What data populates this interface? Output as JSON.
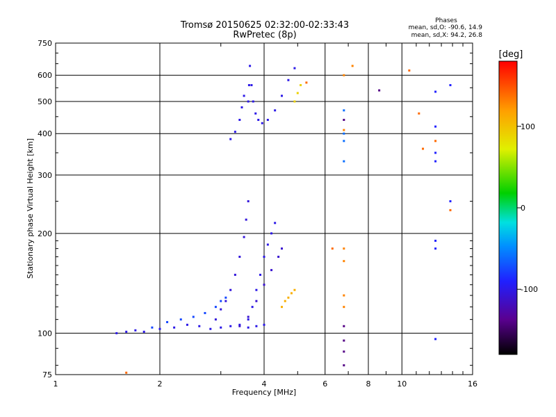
{
  "chart_data": {
    "type": "scatter",
    "title": "Tromsø 20150625 02:32:00-02:33:43",
    "subtitle": "RwPretec (8p)",
    "xlabel": "Frequency [MHz]",
    "ylabel": "Stationary phase Virtual Height [km]",
    "x_scale": "log",
    "y_scale": "log",
    "xlim": [
      1,
      16
    ],
    "ylim": [
      75,
      750
    ],
    "x_ticks": [
      1,
      2,
      4,
      6,
      8,
      10,
      16
    ],
    "x_tick_labels": [
      "1",
      "2",
      "4",
      "6",
      "8",
      "10",
      "16"
    ],
    "x_minor_ticks": [
      3,
      5,
      7,
      9,
      11,
      12,
      13,
      14,
      15
    ],
    "y_ticks": [
      75,
      100,
      200,
      300,
      400,
      500,
      600,
      750
    ],
    "y_tick_labels": [
      "75",
      "100",
      "200",
      "300",
      "400",
      "500",
      "600",
      "750"
    ],
    "grid": true,
    "stats": {
      "heading": "Phases",
      "line1": "mean, sd,O: -90.6, 14.9",
      "line2": "mean, sd,X:  94.2, 26.8"
    },
    "colorbar": {
      "label": "[deg]",
      "range": [
        -180,
        180
      ],
      "ticks": [
        100,
        0,
        -100
      ],
      "tick_labels": [
        "100",
        "0",
        "-100"
      ]
    },
    "traces": [
      {
        "name": "",
        "phase": -100,
        "points": [
          [
            1.5,
            100
          ],
          [
            1.6,
            101
          ],
          [
            1.7,
            102
          ],
          [
            1.8,
            101
          ],
          [
            2.0,
            103
          ],
          [
            2.2,
            104
          ],
          [
            2.4,
            106
          ],
          [
            2.6,
            105
          ],
          [
            2.8,
            103
          ],
          [
            3.0,
            104
          ],
          [
            3.2,
            105
          ],
          [
            3.4,
            106
          ],
          [
            3.6,
            104
          ],
          [
            3.8,
            105
          ],
          [
            4.0,
            106
          ]
        ]
      },
      {
        "name": "",
        "phase": -75,
        "points": [
          [
            1.9,
            104
          ],
          [
            2.1,
            108
          ],
          [
            2.3,
            110
          ],
          [
            2.5,
            112
          ],
          [
            2.7,
            115
          ],
          [
            2.9,
            120
          ],
          [
            3.0,
            125
          ],
          [
            3.1,
            128
          ]
        ]
      },
      {
        "name": "",
        "phase": -105,
        "points": [
          [
            2.9,
            110
          ],
          [
            3.0,
            118
          ],
          [
            3.1,
            125
          ],
          [
            3.2,
            135
          ],
          [
            3.3,
            150
          ],
          [
            3.4,
            170
          ],
          [
            3.5,
            195
          ],
          [
            3.55,
            220
          ],
          [
            3.6,
            250
          ]
        ]
      },
      {
        "name": "",
        "phase": -100,
        "points": [
          [
            3.6,
            110
          ],
          [
            3.7,
            120
          ],
          [
            3.8,
            135
          ],
          [
            3.9,
            150
          ],
          [
            4.0,
            170
          ],
          [
            4.1,
            185
          ],
          [
            4.2,
            200
          ],
          [
            4.3,
            215
          ]
        ]
      },
      {
        "name": "",
        "phase": -110,
        "points": [
          [
            3.4,
            105
          ],
          [
            3.6,
            112
          ],
          [
            3.8,
            125
          ],
          [
            4.0,
            140
          ],
          [
            4.2,
            155
          ],
          [
            4.4,
            170
          ],
          [
            4.5,
            180
          ]
        ]
      },
      {
        "name": "",
        "phase": 110,
        "points": [
          [
            4.5,
            120
          ],
          [
            4.6,
            125
          ],
          [
            4.7,
            128
          ],
          [
            4.8,
            132
          ],
          [
            4.9,
            135
          ]
        ]
      },
      {
        "name": "",
        "phase": -100,
        "points": [
          [
            3.2,
            385
          ],
          [
            3.3,
            405
          ],
          [
            3.4,
            440
          ],
          [
            3.45,
            480
          ],
          [
            3.5,
            520
          ]
        ]
      },
      {
        "name": "",
        "phase": -100,
        "points": [
          [
            3.6,
            500
          ],
          [
            3.62,
            560
          ],
          [
            3.64,
            640
          ],
          [
            3.68,
            560
          ],
          [
            3.72,
            500
          ],
          [
            3.78,
            460
          ],
          [
            3.85,
            440
          ],
          [
            3.95,
            430
          ],
          [
            4.1,
            440
          ],
          [
            4.3,
            470
          ],
          [
            4.5,
            520
          ],
          [
            4.7,
            580
          ],
          [
            4.9,
            630
          ]
        ]
      },
      {
        "name": "",
        "phase": 90,
        "points": [
          [
            4.9,
            500
          ],
          [
            5.0,
            530
          ],
          [
            5.1,
            560
          ]
        ]
      },
      {
        "name": "",
        "phase": -60,
        "points": [
          [
            6.8,
            470
          ],
          [
            6.8,
            400
          ],
          [
            6.8,
            330
          ],
          [
            6.8,
            380
          ]
        ]
      },
      {
        "name": "",
        "phase": 130,
        "points": [
          [
            6.8,
            600
          ],
          [
            6.8,
            410
          ],
          [
            6.8,
            180
          ],
          [
            6.8,
            165
          ],
          [
            6.8,
            130
          ],
          [
            6.8,
            120
          ],
          [
            7.2,
            640
          ]
        ]
      },
      {
        "name": "",
        "phase": -140,
        "points": [
          [
            6.8,
            105
          ],
          [
            6.8,
            95
          ],
          [
            6.8,
            88
          ],
          [
            6.8,
            80
          ],
          [
            6.8,
            440
          ],
          [
            8.6,
            540
          ]
        ]
      },
      {
        "name": "",
        "phase": -90,
        "points": [
          [
            12.5,
            535
          ],
          [
            12.5,
            420
          ],
          [
            12.5,
            330
          ],
          [
            12.5,
            350
          ],
          [
            12.5,
            190
          ],
          [
            12.5,
            180
          ],
          [
            12.5,
            96
          ],
          [
            13.8,
            560
          ],
          [
            13.8,
            250
          ]
        ]
      },
      {
        "name": "",
        "phase": 140,
        "points": [
          [
            11.2,
            460
          ],
          [
            11.5,
            360
          ],
          [
            12.5,
            380
          ],
          [
            10.5,
            620
          ],
          [
            13.8,
            235
          ],
          [
            6.3,
            180
          ],
          [
            5.3,
            570
          ],
          [
            1.6,
            76
          ]
        ]
      }
    ]
  }
}
